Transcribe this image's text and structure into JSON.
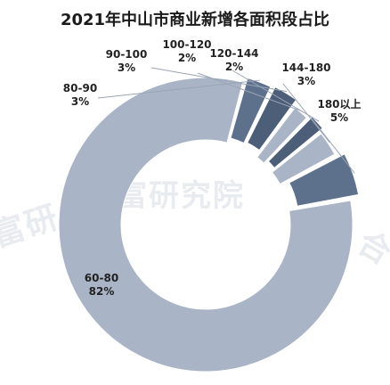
{
  "chart_data": {
    "type": "pie",
    "style": "donut",
    "title": "2021年中山市商业新增各面积段占比",
    "slices": [
      {
        "label": "180以上",
        "pct_text": "5%",
        "value": 5,
        "color": "#5e718c"
      },
      {
        "label": "60-80",
        "pct_text": "82%",
        "value": 82,
        "color": "#a9b4c6"
      },
      {
        "label": "80-90",
        "pct_text": "3%",
        "value": 3,
        "color": "#5e718c"
      },
      {
        "label": "90-100",
        "pct_text": "3%",
        "value": 3,
        "color": "#4d5e78"
      },
      {
        "label": "100-120",
        "pct_text": "2%",
        "value": 2,
        "color": "#a9b4c6"
      },
      {
        "label": "120-144",
        "pct_text": "2%",
        "value": 2,
        "color": "#4d5e78"
      },
      {
        "label": "144-180",
        "pct_text": "3%",
        "value": 3,
        "color": "#a9b4c6"
      }
    ],
    "legend": "none"
  },
  "watermark": {
    "text_center": "合富研究院",
    "text_left": "富研",
    "text_right": "合"
  }
}
